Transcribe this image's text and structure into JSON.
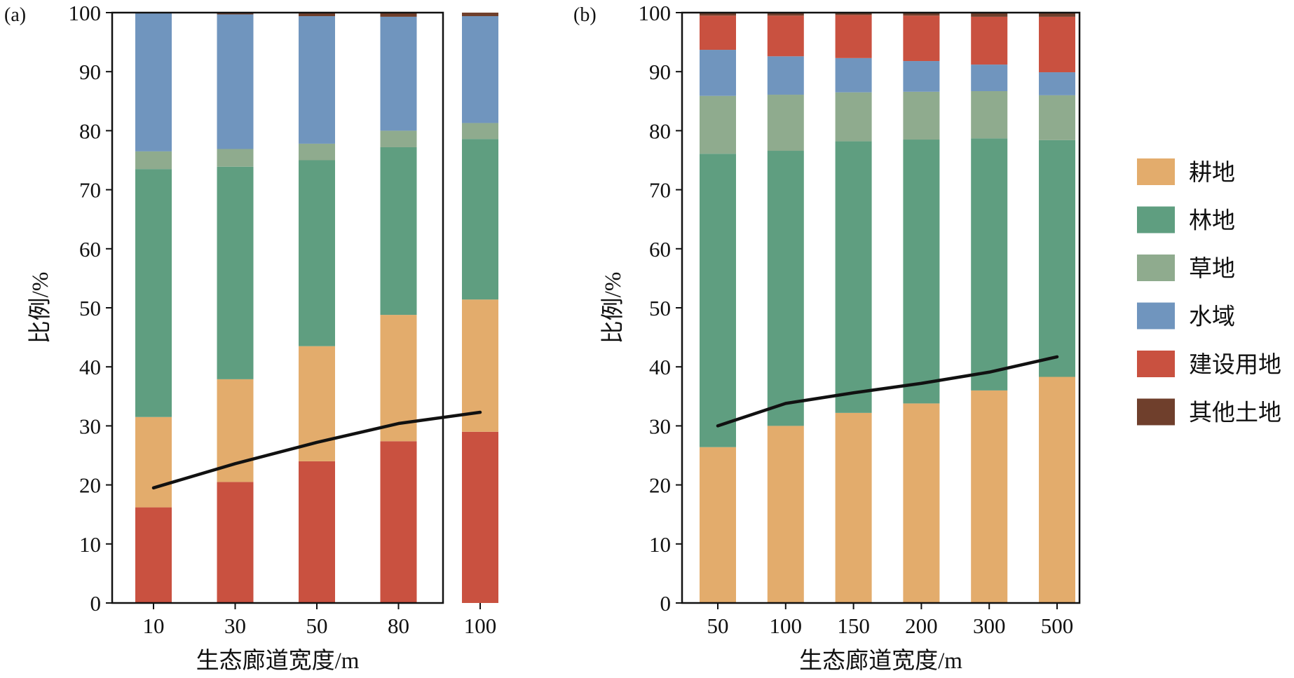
{
  "colors": {
    "耕地": "#E3AC6C",
    "林地": "#5F9E80",
    "草地": "#8FAB8E",
    "水域": "#7095BE",
    "建设用地": "#C95140",
    "其他土地": "#6F3F2C",
    "trend_line": "#111111",
    "axis": "#111111"
  },
  "legend": {
    "placement": "right",
    "items": [
      {
        "label": "耕地",
        "color": "#E3AC6C"
      },
      {
        "label": "林地",
        "color": "#5F9E80"
      },
      {
        "label": "草地",
        "color": "#8FAB8E"
      },
      {
        "label": "水域",
        "color": "#7095BE"
      },
      {
        "label": "建设用地",
        "color": "#C95140"
      },
      {
        "label": "其他土地",
        "color": "#6F3F2C"
      }
    ]
  },
  "chart_data": [
    {
      "panel_label": "(a)",
      "type": "bar",
      "stacked": true,
      "xlabel": "生态廊道宽度/m",
      "ylabel": "比例/%",
      "ylim": [
        0,
        100
      ],
      "yticks": [
        0,
        10,
        20,
        30,
        40,
        50,
        60,
        70,
        80,
        90,
        100
      ],
      "categories": [
        "10",
        "30",
        "50",
        "80",
        "100"
      ],
      "series": [
        {
          "name": "建设用地",
          "values": [
            16.2,
            20.5,
            24.0,
            27.4,
            29.0
          ]
        },
        {
          "name": "耕地",
          "values": [
            15.3,
            17.4,
            19.5,
            21.4,
            22.4
          ]
        },
        {
          "name": "林地",
          "values": [
            42.0,
            36.0,
            31.5,
            28.4,
            27.2
          ]
        },
        {
          "name": "草地",
          "values": [
            3.0,
            3.0,
            2.8,
            2.8,
            2.7
          ]
        },
        {
          "name": "水域",
          "values": [
            23.4,
            22.8,
            21.6,
            19.3,
            18.1
          ]
        },
        {
          "name": "其他土地",
          "values": [
            0.1,
            0.3,
            0.6,
            0.7,
            0.6
          ]
        }
      ],
      "line": {
        "values": [
          19.5,
          23.6,
          27.2,
          30.4,
          32.3
        ]
      }
    },
    {
      "panel_label": "(b)",
      "type": "bar",
      "stacked": true,
      "xlabel": "生态廊道宽度/m",
      "ylabel": "比例/%",
      "ylim": [
        0,
        100
      ],
      "yticks": [
        0,
        10,
        20,
        30,
        40,
        50,
        60,
        70,
        80,
        90,
        100
      ],
      "categories": [
        "50",
        "100",
        "150",
        "200",
        "300",
        "500"
      ],
      "series": [
        {
          "name": "耕地",
          "values": [
            26.4,
            30.0,
            32.2,
            33.8,
            36.0,
            38.3
          ]
        },
        {
          "name": "林地",
          "values": [
            49.7,
            46.6,
            46.0,
            44.7,
            42.7,
            40.1
          ]
        },
        {
          "name": "草地",
          "values": [
            9.8,
            9.5,
            8.3,
            8.1,
            8.0,
            7.6
          ]
        },
        {
          "name": "水域",
          "values": [
            7.8,
            6.5,
            5.8,
            5.2,
            4.5,
            3.9
          ]
        },
        {
          "name": "建设用地",
          "values": [
            5.8,
            6.9,
            7.3,
            7.7,
            8.1,
            9.4
          ]
        },
        {
          "name": "其他土地",
          "values": [
            0.5,
            0.5,
            0.4,
            0.5,
            0.7,
            0.7
          ]
        }
      ],
      "line": {
        "values": [
          30.0,
          33.8,
          35.6,
          37.2,
          39.1,
          41.7
        ]
      }
    }
  ]
}
